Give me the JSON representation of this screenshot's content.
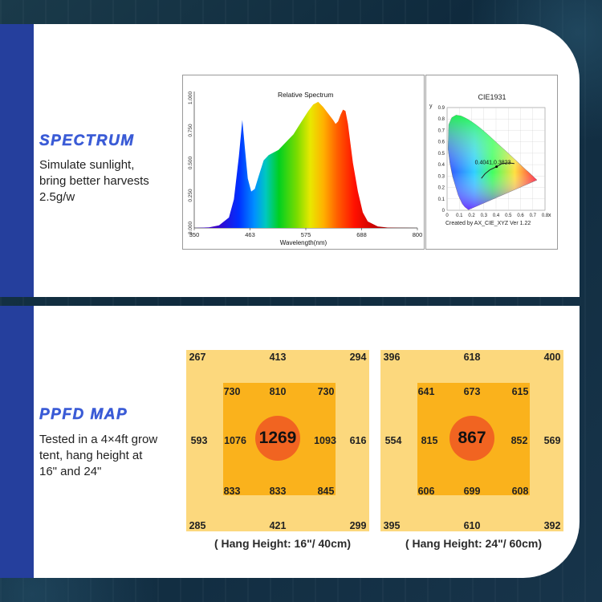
{
  "spectrum_section": {
    "title": "SPECTRUM",
    "description": "Simulate sunlight,\nbring better harvests\n2.5g/w"
  },
  "ppfd_section": {
    "title": "PPFD MAP",
    "description": "Tested in a 4×4ft grow\ntent,  hang height at\n16\" and 24\""
  },
  "chart_data": [
    {
      "type": "area",
      "title": "Relative Spectrum",
      "xlabel": "Wavelength(nm)",
      "ylabel": "",
      "xlim": [
        350,
        800
      ],
      "ylim": [
        0,
        1.0
      ],
      "x_ticks": [
        "350",
        "463",
        "575",
        "688",
        "800"
      ],
      "y_ticks": [
        "0.000",
        "0.250",
        "0.500",
        "0.750",
        "1.000"
      ],
      "x": [
        350,
        380,
        400,
        420,
        430,
        440,
        447,
        452,
        458,
        465,
        472,
        480,
        490,
        500,
        510,
        520,
        530,
        540,
        550,
        560,
        570,
        580,
        590,
        600,
        610,
        620,
        630,
        635,
        640,
        645,
        650,
        655,
        660,
        665,
        670,
        680,
        690,
        700,
        720,
        740,
        760,
        800
      ],
      "y": [
        0.0,
        0.005,
        0.02,
        0.08,
        0.22,
        0.55,
        0.83,
        0.62,
        0.38,
        0.28,
        0.3,
        0.4,
        0.52,
        0.56,
        0.58,
        0.6,
        0.64,
        0.68,
        0.72,
        0.78,
        0.84,
        0.9,
        0.95,
        0.97,
        0.93,
        0.88,
        0.83,
        0.8,
        0.82,
        0.87,
        0.91,
        0.9,
        0.8,
        0.65,
        0.5,
        0.28,
        0.12,
        0.05,
        0.012,
        0.003,
        0.001,
        0.0
      ]
    },
    {
      "type": "scatter",
      "title": "CIE1931",
      "xlabel": "x",
      "ylabel": "y",
      "xlim": [
        0,
        0.8
      ],
      "ylim": [
        0,
        0.9
      ],
      "x_ticks": [
        "0",
        "0.1",
        "0.2",
        "0.3",
        "0.4",
        "0.5",
        "0.6",
        "0.7",
        "0.8"
      ],
      "y_ticks": [
        "0",
        "0.1",
        "0.2",
        "0.3",
        "0.4",
        "0.5",
        "0.6",
        "0.7",
        "0.8",
        "0.9"
      ],
      "annotation": "0.4041,0.3823",
      "point": [
        0.4041,
        0.3823
      ],
      "footer": "Created by AX_CIE_XYZ Ver 1.22"
    },
    {
      "type": "heatmap",
      "center": "1269",
      "outer_top": [
        "267",
        "413",
        "294"
      ],
      "outer_left": "593",
      "outer_right": "616",
      "outer_bottom": [
        "285",
        "421",
        "299"
      ],
      "inner_top": [
        "730",
        "810",
        "730"
      ],
      "inner_left": "1076",
      "inner_right": "1093",
      "inner_bottom": [
        "833",
        "833",
        "845"
      ],
      "caption": "( Hang Height: 16\"/ 40cm)"
    },
    {
      "type": "heatmap",
      "center": "867",
      "outer_top": [
        "396",
        "618",
        "400"
      ],
      "outer_left": "554",
      "outer_right": "569",
      "outer_bottom": [
        "395",
        "610",
        "392"
      ],
      "inner_top": [
        "641",
        "673",
        "615"
      ],
      "inner_left": "815",
      "inner_right": "852",
      "inner_bottom": [
        "606",
        "699",
        "608"
      ],
      "caption": "( Hang Height: 24\"/ 60cm)"
    }
  ],
  "colors": {
    "accent_blue": "#253f9d",
    "title_blue": "#3a5bd6",
    "ppfd_outer": "#fcd87d",
    "ppfd_inner": "#fab21c",
    "ppfd_center": "#f16421"
  }
}
